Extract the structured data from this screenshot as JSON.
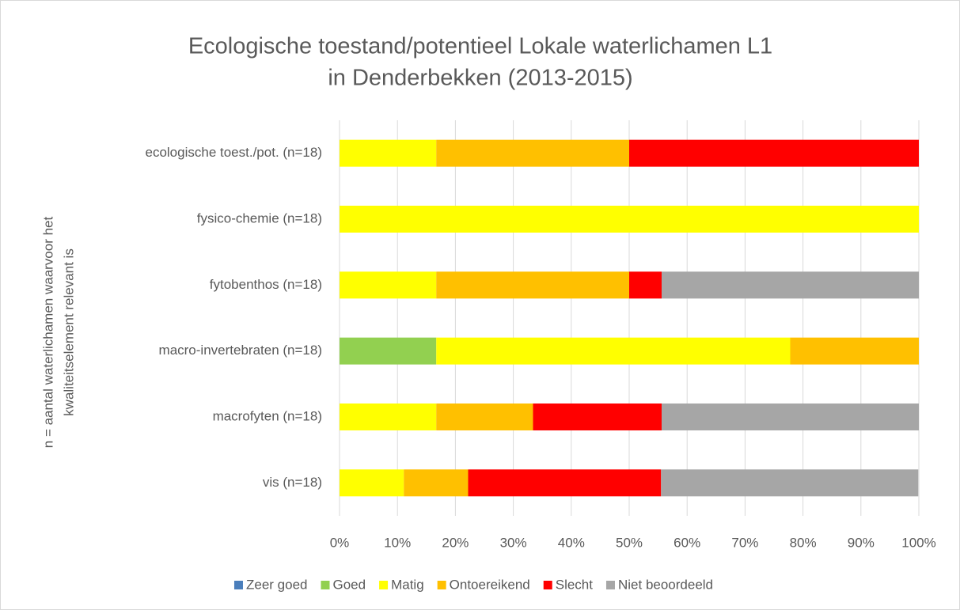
{
  "chart_data": {
    "type": "stacked-barh",
    "title": [
      "Ecologische toestand/potentieel Lokale waterlichamen L1",
      "in Denderbekken (2013-2015)"
    ],
    "y_label": [
      "n = aantal waterlichamen waarvoor het",
      "kwaliteitselement relevant is"
    ],
    "categories": [
      "ecologische toest./pot. (n=18)",
      "fysico-chemie (n=18)",
      "fytobenthos (n=18)",
      "macro-invertebraten (n=18)",
      "macrofyten (n=18)",
      "vis (n=18)"
    ],
    "series": [
      {
        "name": "Zeer goed",
        "color": "#4a7ebb",
        "values": [
          0,
          0,
          0,
          0,
          0,
          0
        ]
      },
      {
        "name": "Goed",
        "color": "#92d050",
        "values": [
          0,
          0,
          0,
          16.7,
          0,
          0
        ]
      },
      {
        "name": "Matig",
        "color": "#ffff00",
        "values": [
          16.7,
          100,
          16.7,
          61.1,
          16.7,
          11.1
        ]
      },
      {
        "name": "Ontoereikend",
        "color": "#ffc000",
        "values": [
          33.3,
          0,
          33.3,
          22.2,
          16.7,
          11.1
        ]
      },
      {
        "name": "Slecht",
        "color": "#ff0000",
        "values": [
          50,
          0,
          5.6,
          0,
          22.2,
          33.3
        ]
      },
      {
        "name": "Niet beoordeeld",
        "color": "#a6a6a6",
        "values": [
          0,
          0,
          44.4,
          0,
          44.4,
          44.4
        ]
      }
    ],
    "xlim": [
      0,
      100
    ],
    "xticks": [
      {
        "value": 0,
        "label": "0%"
      },
      {
        "value": 10,
        "label": "10%"
      },
      {
        "value": 20,
        "label": "20%"
      },
      {
        "value": 30,
        "label": "30%"
      },
      {
        "value": 40,
        "label": "40%"
      },
      {
        "value": 50,
        "label": "50%"
      },
      {
        "value": 60,
        "label": "60%"
      },
      {
        "value": 70,
        "label": "70%"
      },
      {
        "value": 80,
        "label": "80%"
      },
      {
        "value": 90,
        "label": "90%"
      },
      {
        "value": 100,
        "label": "100%"
      }
    ],
    "grid": true,
    "legend": "bottom"
  }
}
